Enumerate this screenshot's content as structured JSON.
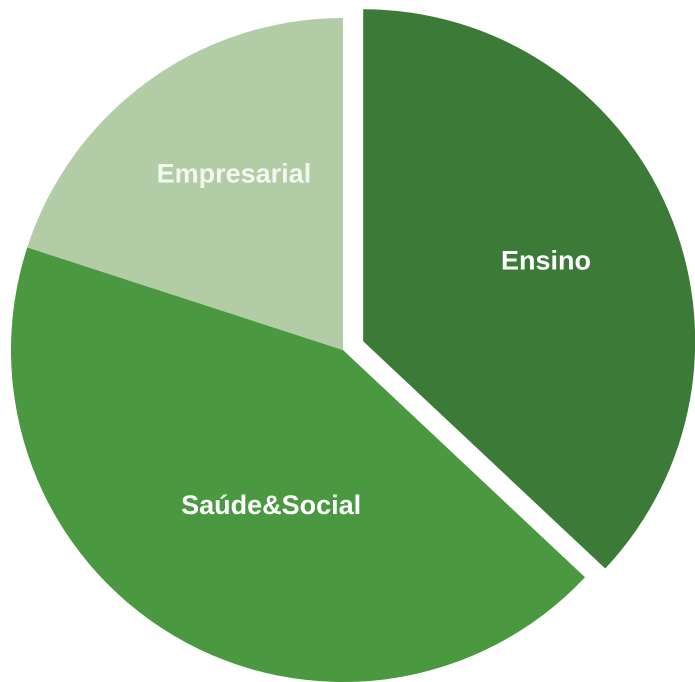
{
  "chart_data": {
    "type": "pie",
    "title": "",
    "slices": [
      {
        "label": "Ensino",
        "value": 37,
        "color": "#3b7a37",
        "exploded": true
      },
      {
        "label": "Saúde&Social",
        "value": 43,
        "color": "#4a9840",
        "exploded": false
      },
      {
        "label": "Empresarial",
        "value": 20,
        "color": "#b2cca6",
        "exploded": false
      }
    ],
    "start_angle_deg": 0,
    "direction": "clockwise",
    "legend": "none"
  }
}
